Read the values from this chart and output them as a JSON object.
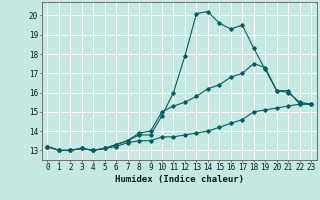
{
  "title": "",
  "xlabel": "Humidex (Indice chaleur)",
  "ylabel": "",
  "bg_color": "#c5e8e0",
  "grid_color": "#ffffff",
  "line_color": "#006060",
  "xlim": [
    -0.5,
    23.5
  ],
  "ylim": [
    12.5,
    20.7
  ],
  "yticks": [
    13,
    14,
    15,
    16,
    17,
    18,
    19,
    20
  ],
  "xticks": [
    0,
    1,
    2,
    3,
    4,
    5,
    6,
    7,
    8,
    9,
    10,
    11,
    12,
    13,
    14,
    15,
    16,
    17,
    18,
    19,
    20,
    21,
    22,
    23
  ],
  "series1": [
    13.2,
    13.0,
    13.0,
    13.1,
    13.0,
    13.1,
    13.3,
    13.5,
    13.8,
    13.8,
    14.8,
    16.0,
    17.9,
    20.1,
    20.2,
    19.6,
    19.3,
    19.5,
    18.3,
    17.2,
    16.1,
    16.1,
    15.4,
    15.4
  ],
  "series2": [
    13.2,
    13.0,
    13.0,
    13.1,
    13.0,
    13.1,
    13.3,
    13.5,
    13.9,
    14.0,
    15.0,
    15.3,
    15.5,
    15.8,
    16.2,
    16.4,
    16.8,
    17.0,
    17.5,
    17.3,
    16.1,
    16.0,
    15.5,
    15.4
  ],
  "series3": [
    13.2,
    13.0,
    13.0,
    13.1,
    13.0,
    13.1,
    13.2,
    13.4,
    13.5,
    13.5,
    13.7,
    13.7,
    13.8,
    13.9,
    14.0,
    14.2,
    14.4,
    14.6,
    15.0,
    15.1,
    15.2,
    15.3,
    15.4,
    15.4
  ],
  "tick_fontsize": 5.5,
  "xlabel_fontsize": 6.5
}
